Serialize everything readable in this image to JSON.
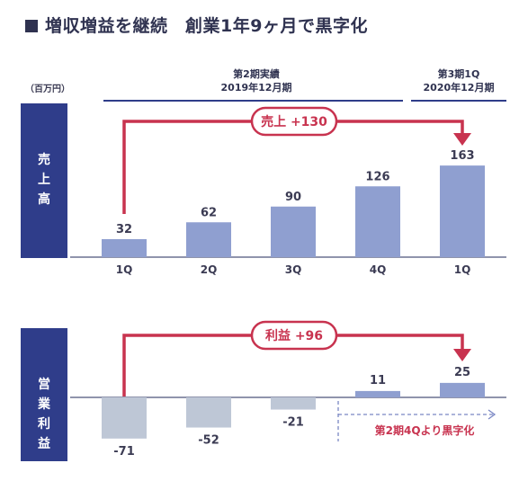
{
  "title": "増収増益を継続　創業1年9ヶ月で黒字化",
  "unit_label": "（百万円）",
  "periods": [
    {
      "line1": "第2期実績",
      "line2": "2019年12月期"
    },
    {
      "line1": "第3期1Q",
      "line2": "2020年12月期"
    }
  ],
  "colors": {
    "bar_positive": "#8f9fd0",
    "bar_negative": "#bec7d6",
    "accent": "#c8334f",
    "navy": "#2f3d8a"
  },
  "chart_data": [
    {
      "type": "bar",
      "row_label": "売上高",
      "categories": [
        "1Q",
        "2Q",
        "3Q",
        "4Q",
        "1Q"
      ],
      "values": [
        32,
        62,
        90,
        126,
        163
      ],
      "value_labels": [
        "32",
        "62",
        "90",
        "126",
        "163"
      ],
      "annotation": "売上 +130"
    },
    {
      "type": "bar",
      "row_label": "営業利益",
      "categories": [
        "1Q",
        "2Q",
        "3Q",
        "4Q",
        "1Q"
      ],
      "values": [
        -71,
        -52,
        -21,
        11,
        25
      ],
      "value_labels": [
        "-71",
        "-52",
        "-21",
        "11",
        "25"
      ],
      "annotation": "利益 +96",
      "note": "第2期4Qより黒字化"
    }
  ]
}
